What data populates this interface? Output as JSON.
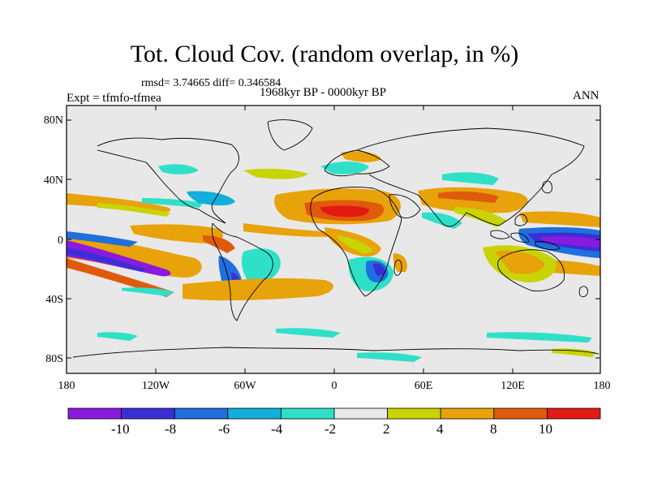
{
  "title": "Tot. Cloud Cov. (random overlap, in %)",
  "stats": "rmsd= 3.74665 diff= 0.346584",
  "period": "1968kyr BP - 0000kyr BP",
  "experiment": "Expt = tfmfo-tfmea",
  "season": "ANN",
  "y_ticks": [
    "80N",
    "40N",
    "0",
    "40S",
    "80S"
  ],
  "x_ticks": [
    "180",
    "120W",
    "60W",
    "0",
    "60E",
    "120E",
    "180"
  ],
  "colorbar": {
    "labels": [
      "-10",
      "-8",
      "-6",
      "-4",
      "-2",
      "2",
      "4",
      "8",
      "10"
    ],
    "colors": [
      "#8b1adf",
      "#3a2fd6",
      "#1f6fdc",
      "#13aedb",
      "#2fe0c8",
      "#e8e8e8",
      "#c8d404",
      "#e8a20a",
      "#e05a0c",
      "#e31a14"
    ]
  },
  "map": {
    "background_color": "#e8e8e8",
    "lon_range": [
      -180,
      180
    ],
    "lat_range": [
      -90,
      90
    ]
  }
}
